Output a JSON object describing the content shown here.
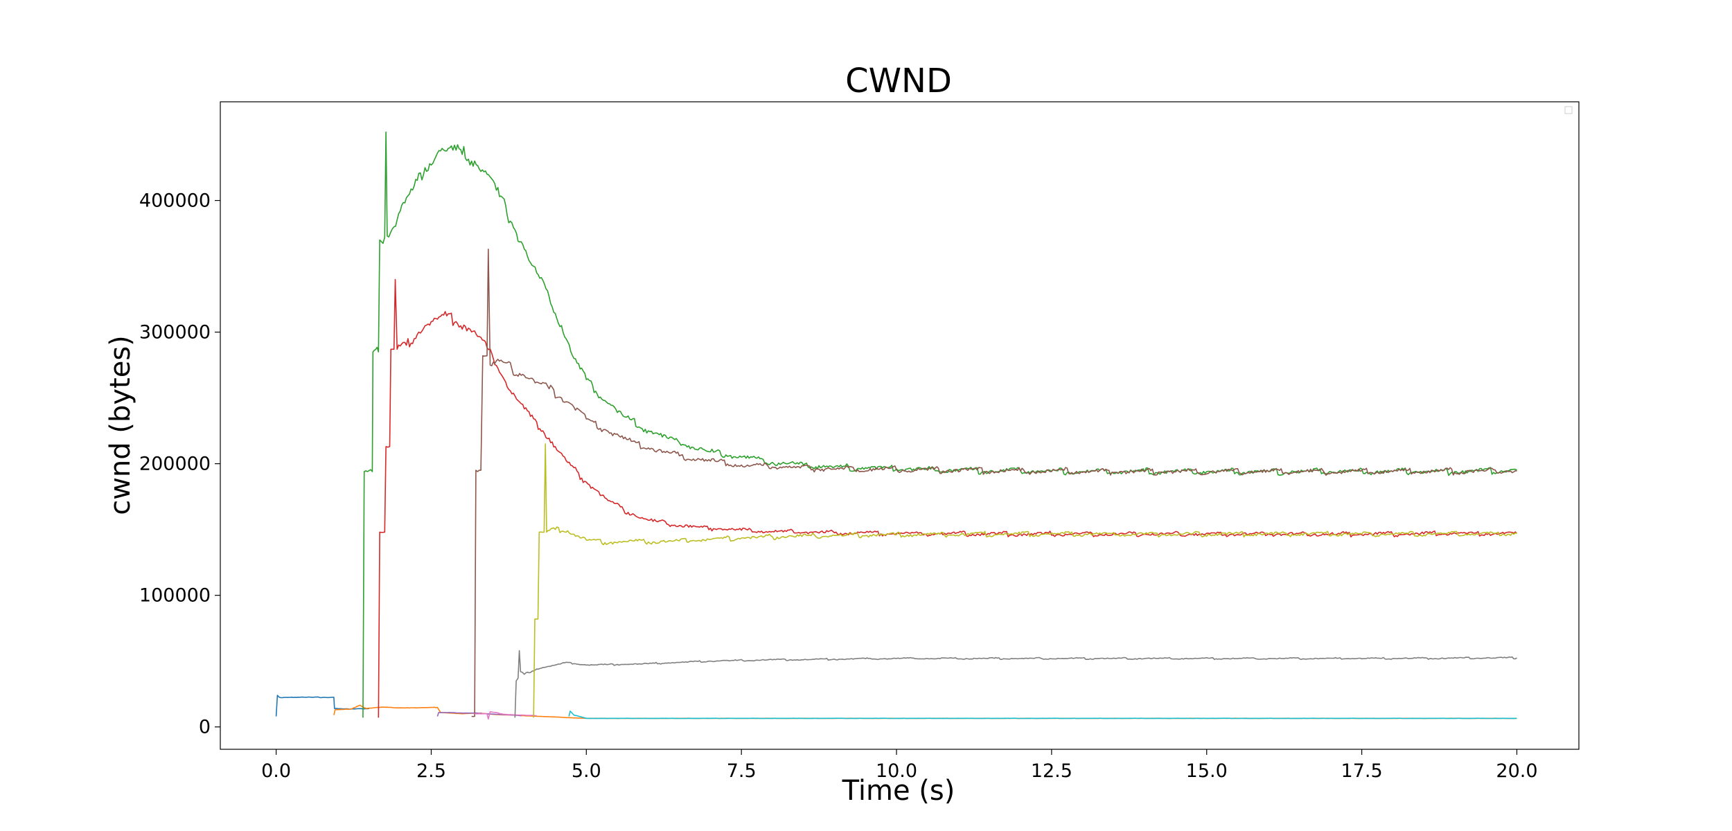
{
  "chart_data": {
    "type": "line",
    "title": "CWND",
    "xlabel": "Time (s)",
    "ylabel": "cwnd (bytes)",
    "xlim": [
      -0.9,
      21.0
    ],
    "ylim": [
      -17000,
      475000
    ],
    "x_ticks": [
      0.0,
      2.5,
      5.0,
      7.5,
      10.0,
      12.5,
      15.0,
      17.5,
      20.0
    ],
    "x_tick_labels": [
      "0.0",
      "2.5",
      "5.0",
      "7.5",
      "10.0",
      "12.5",
      "15.0",
      "17.5",
      "20.0"
    ],
    "y_ticks": [
      0,
      100000,
      200000,
      300000,
      400000
    ],
    "y_tick_labels": [
      "0",
      "100000",
      "200000",
      "300000",
      "400000"
    ],
    "grid": false,
    "legend": "upper right (empty)",
    "series": [
      {
        "color": "#1f77b4",
        "points": [
          [
            0.0,
            8000
          ],
          [
            0.02,
            24000
          ],
          [
            0.05,
            22500
          ],
          [
            0.3,
            22500
          ],
          [
            0.6,
            22500
          ],
          [
            0.93,
            22500
          ],
          [
            0.94,
            14000
          ],
          [
            1.2,
            13500
          ],
          [
            1.5,
            14000
          ]
        ]
      },
      {
        "color": "#ff7f0e",
        "points": [
          [
            0.93,
            9000
          ],
          [
            0.95,
            13000
          ],
          [
            1.2,
            13500
          ],
          [
            1.35,
            16500
          ],
          [
            1.45,
            14000
          ],
          [
            1.7,
            15000
          ],
          [
            2.0,
            14500
          ],
          [
            2.3,
            14500
          ],
          [
            2.6,
            14800
          ],
          [
            2.65,
            11000
          ],
          [
            3.0,
            10000
          ],
          [
            3.3,
            10500
          ],
          [
            3.5,
            9500
          ],
          [
            4.0,
            8500
          ],
          [
            4.75,
            7000
          ],
          [
            5.0,
            6500
          ],
          [
            7.5,
            6500
          ],
          [
            10.0,
            6500
          ],
          [
            12.5,
            6500
          ],
          [
            15.0,
            6500
          ],
          [
            17.5,
            6500
          ],
          [
            20.0,
            6500
          ]
        ]
      },
      {
        "color": "#2ca02c",
        "points": [
          [
            1.4,
            7000
          ],
          [
            1.42,
            194000
          ],
          [
            1.55,
            194000
          ],
          [
            1.56,
            285000
          ],
          [
            1.65,
            285000
          ],
          [
            1.67,
            370000
          ],
          [
            1.75,
            372000
          ],
          [
            1.77,
            452000
          ],
          [
            1.79,
            373000
          ],
          [
            1.9,
            380000
          ],
          [
            2.0,
            392000
          ],
          [
            2.2,
            408000
          ],
          [
            2.4,
            425000
          ],
          [
            2.6,
            436000
          ],
          [
            2.8,
            440000
          ],
          [
            3.0,
            435000
          ],
          [
            3.2,
            430000
          ],
          [
            3.4,
            420000
          ],
          [
            3.6,
            403000
          ],
          [
            3.8,
            383000
          ],
          [
            4.0,
            363000
          ],
          [
            4.2,
            345000
          ],
          [
            4.4,
            327000
          ],
          [
            4.6,
            305000
          ],
          [
            4.8,
            280000
          ],
          [
            5.0,
            264000
          ],
          [
            5.3,
            248000
          ],
          [
            5.6,
            236000
          ],
          [
            6.0,
            225000
          ],
          [
            6.5,
            216000
          ],
          [
            7.0,
            209000
          ],
          [
            7.5,
            205000
          ],
          [
            8.0,
            201000
          ],
          [
            8.5,
            199000
          ],
          [
            9.0,
            197500
          ],
          [
            10.0,
            196000
          ],
          [
            11.0,
            195000
          ],
          [
            12.0,
            194500
          ],
          [
            13.0,
            194000
          ],
          [
            14.0,
            194000
          ],
          [
            15.0,
            194000
          ],
          [
            16.0,
            194000
          ],
          [
            17.0,
            194000
          ],
          [
            18.0,
            194000
          ],
          [
            19.0,
            194000
          ],
          [
            20.0,
            195000
          ]
        ]
      },
      {
        "color": "#d62728",
        "points": [
          [
            1.65,
            7000
          ],
          [
            1.67,
            148000
          ],
          [
            1.75,
            148000
          ],
          [
            1.77,
            213000
          ],
          [
            1.83,
            213000
          ],
          [
            1.85,
            287000
          ],
          [
            1.9,
            287000
          ],
          [
            1.92,
            340000
          ],
          [
            1.95,
            287000
          ],
          [
            2.1,
            290000
          ],
          [
            2.3,
            300000
          ],
          [
            2.5,
            308000
          ],
          [
            2.7,
            313000
          ],
          [
            2.9,
            308000
          ],
          [
            3.1,
            303000
          ],
          [
            3.3,
            296000
          ],
          [
            3.5,
            280000
          ],
          [
            3.7,
            262000
          ],
          [
            3.9,
            248000
          ],
          [
            4.1,
            236000
          ],
          [
            4.3,
            225000
          ],
          [
            4.5,
            213000
          ],
          [
            4.7,
            201000
          ],
          [
            5.0,
            186000
          ],
          [
            5.3,
            174000
          ],
          [
            5.6,
            165000
          ],
          [
            6.0,
            157000
          ],
          [
            6.5,
            153000
          ],
          [
            7.0,
            151000
          ],
          [
            7.5,
            149500
          ],
          [
            8.0,
            148500
          ],
          [
            9.0,
            147500
          ],
          [
            10.0,
            147000
          ],
          [
            12.0,
            146500
          ],
          [
            14.0,
            146500
          ],
          [
            16.0,
            146500
          ],
          [
            18.0,
            146500
          ],
          [
            20.0,
            147000
          ]
        ]
      },
      {
        "color": "#9467bd",
        "points": [
          [
            2.6,
            8000
          ],
          [
            2.62,
            11000
          ],
          [
            2.8,
            11000
          ],
          [
            3.0,
            10500
          ],
          [
            3.2,
            10500
          ],
          [
            3.4,
            10000
          ],
          [
            3.6,
            9500
          ],
          [
            3.8,
            9000
          ],
          [
            3.95,
            8500
          ]
        ]
      },
      {
        "color": "#8c564b",
        "points": [
          [
            3.15,
            8000
          ],
          [
            3.2,
            8000
          ],
          [
            3.22,
            195000
          ],
          [
            3.3,
            195000
          ],
          [
            3.33,
            282000
          ],
          [
            3.4,
            282000
          ],
          [
            3.42,
            363000
          ],
          [
            3.45,
            275000
          ],
          [
            3.6,
            278000
          ],
          [
            3.8,
            272000
          ],
          [
            4.0,
            267000
          ],
          [
            4.2,
            262000
          ],
          [
            4.4,
            257000
          ],
          [
            4.6,
            250000
          ],
          [
            4.8,
            243000
          ],
          [
            5.0,
            234000
          ],
          [
            5.3,
            226000
          ],
          [
            5.6,
            219000
          ],
          [
            6.0,
            212000
          ],
          [
            6.5,
            206000
          ],
          [
            7.0,
            202000
          ],
          [
            7.5,
            199000
          ],
          [
            8.0,
            197500
          ],
          [
            9.0,
            196000
          ],
          [
            10.0,
            195500
          ],
          [
            12.0,
            194500
          ],
          [
            14.0,
            194000
          ],
          [
            16.0,
            194000
          ],
          [
            18.0,
            194000
          ],
          [
            20.0,
            194500
          ]
        ]
      },
      {
        "color": "#e377c2",
        "points": [
          [
            3.2,
            10000
          ],
          [
            3.4,
            10000
          ],
          [
            3.42,
            6000
          ],
          [
            3.45,
            11500
          ],
          [
            3.7,
            9500
          ],
          [
            3.95,
            9000
          ],
          [
            4.2,
            8500
          ]
        ]
      },
      {
        "color": "#7f7f7f",
        "points": [
          [
            3.85,
            7000
          ],
          [
            3.87,
            35000
          ],
          [
            3.9,
            37000
          ],
          [
            3.92,
            58000
          ],
          [
            3.94,
            42000
          ],
          [
            4.0,
            40000
          ],
          [
            4.2,
            44000
          ],
          [
            4.4,
            46000
          ],
          [
            4.7,
            49000
          ],
          [
            5.0,
            47000
          ],
          [
            5.5,
            47500
          ],
          [
            6.0,
            48000
          ],
          [
            6.5,
            49000
          ],
          [
            7.0,
            50000
          ],
          [
            8.0,
            51000
          ],
          [
            9.0,
            51500
          ],
          [
            10.0,
            52000
          ],
          [
            12.0,
            52000
          ],
          [
            14.0,
            52000
          ],
          [
            16.0,
            52000
          ],
          [
            18.0,
            52000
          ],
          [
            20.0,
            52500
          ]
        ]
      },
      {
        "color": "#bcbd22",
        "points": [
          [
            4.15,
            7000
          ],
          [
            4.17,
            82000
          ],
          [
            4.22,
            82000
          ],
          [
            4.24,
            148000
          ],
          [
            4.32,
            148000
          ],
          [
            4.34,
            215000
          ],
          [
            4.36,
            148000
          ],
          [
            4.5,
            150000
          ],
          [
            4.7,
            149000
          ],
          [
            5.0,
            142000
          ],
          [
            5.3,
            140000
          ],
          [
            5.6,
            141000
          ],
          [
            6.0,
            140500
          ],
          [
            6.5,
            141500
          ],
          [
            7.0,
            142500
          ],
          [
            7.5,
            143500
          ],
          [
            8.0,
            144500
          ],
          [
            9.0,
            145500
          ],
          [
            10.0,
            146000
          ],
          [
            12.0,
            146500
          ],
          [
            14.0,
            146500
          ],
          [
            16.0,
            146500
          ],
          [
            18.0,
            146500
          ],
          [
            20.0,
            147000
          ]
        ]
      },
      {
        "color": "#17becf",
        "points": [
          [
            4.72,
            8000
          ],
          [
            4.74,
            12000
          ],
          [
            4.8,
            9000
          ],
          [
            5.0,
            6500
          ],
          [
            7.5,
            6500
          ],
          [
            10.0,
            6500
          ],
          [
            12.5,
            6500
          ],
          [
            15.0,
            6500
          ],
          [
            17.5,
            6500
          ],
          [
            20.0,
            6500
          ]
        ]
      }
    ]
  }
}
